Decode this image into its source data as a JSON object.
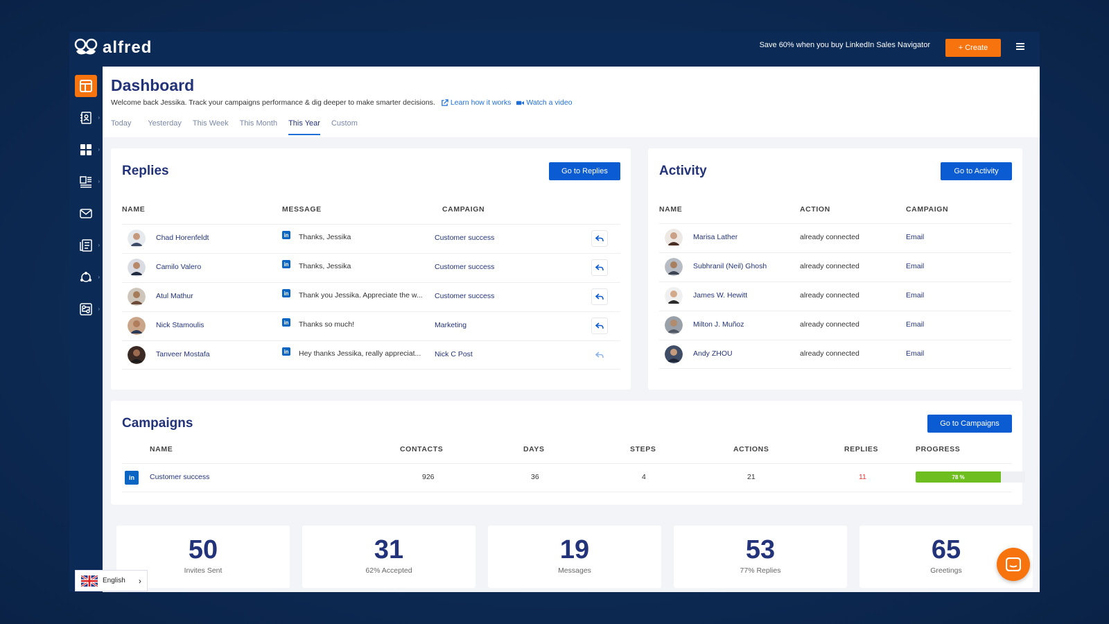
{
  "brand": {
    "name": "alfred"
  },
  "topbar": {
    "promo": "Save 60% when you buy LinkedIn Sales Navigator",
    "create_label": "+ Create"
  },
  "sidebar": {
    "items": [
      "dashboard-icon",
      "contacts-icon",
      "apps-icon",
      "templates-icon",
      "mail-icon",
      "reports-icon",
      "network-icon",
      "integrations-icon"
    ]
  },
  "header": {
    "title": "Dashboard",
    "welcome": "Welcome back Jessika. Track your campaigns performance & dig deeper to make smarter decisions.",
    "learn_link": "Learn how it works",
    "video_link": "Watch a video",
    "tabs": [
      "Today",
      "Yesterday",
      "This Week",
      "This Month",
      "This Year",
      "Custom"
    ],
    "active_tab": "This Year"
  },
  "replies": {
    "title": "Replies",
    "button": "Go to Replies",
    "columns": [
      "NAME",
      "MESSAGE",
      "CAMPAIGN"
    ],
    "rows": [
      {
        "name": "Chad Horenfeldt",
        "message": "Thanks, Jessika",
        "campaign": "Customer success"
      },
      {
        "name": "Camilo Valero",
        "message": "Thanks, Jessika",
        "campaign": "Customer success"
      },
      {
        "name": "Atul Mathur",
        "message": "Thank you Jessika. Appreciate the w...",
        "campaign": "Customer success"
      },
      {
        "name": "Nick Stamoulis",
        "message": "Thanks so much!",
        "campaign": "Marketing"
      },
      {
        "name": "Tanveer Mostafa",
        "message": "Hey thanks Jessika, really appreciat...",
        "campaign": "Nick C Post"
      }
    ]
  },
  "activity": {
    "title": "Activity",
    "button": "Go to Activity",
    "columns": [
      "NAME",
      "ACTION",
      "CAMPAIGN"
    ],
    "rows": [
      {
        "name": "Marisa Lather",
        "action": "already connected",
        "campaign": "Email"
      },
      {
        "name": "Subhranil (Neil) Ghosh",
        "action": "already connected",
        "campaign": "Email"
      },
      {
        "name": "James W. Hewitt",
        "action": "already connected",
        "campaign": "Email"
      },
      {
        "name": "Milton J. Muñoz",
        "action": "already connected",
        "campaign": "Email"
      },
      {
        "name": "Andy ZHOU",
        "action": "already connected",
        "campaign": "Email"
      }
    ]
  },
  "campaigns": {
    "title": "Campaigns",
    "button": "Go to Campaigns",
    "columns": [
      "NAME",
      "CONTACTS",
      "DAYS",
      "STEPS",
      "ACTIONS",
      "REPLIES",
      "PROGRESS"
    ],
    "rows": [
      {
        "name": "Customer success",
        "contacts": "926",
        "days": "36",
        "steps": "4",
        "actions": "21",
        "replies": "11",
        "progress_label": "78 %",
        "progress": 78
      }
    ]
  },
  "stats": [
    {
      "value": "50",
      "label": "Invites Sent"
    },
    {
      "value": "31",
      "label": "62% Accepted"
    },
    {
      "value": "19",
      "label": "Messages"
    },
    {
      "value": "53",
      "label": "77% Replies"
    },
    {
      "value": "65",
      "label": "Greetings"
    }
  ],
  "language": {
    "label": "English"
  },
  "colors": {
    "accent": "#f7730e",
    "primary": "#0b5bd3",
    "navy": "#0b2a55",
    "title": "#23337a",
    "progress": "#6fbe1f",
    "alert": "#e53935"
  }
}
